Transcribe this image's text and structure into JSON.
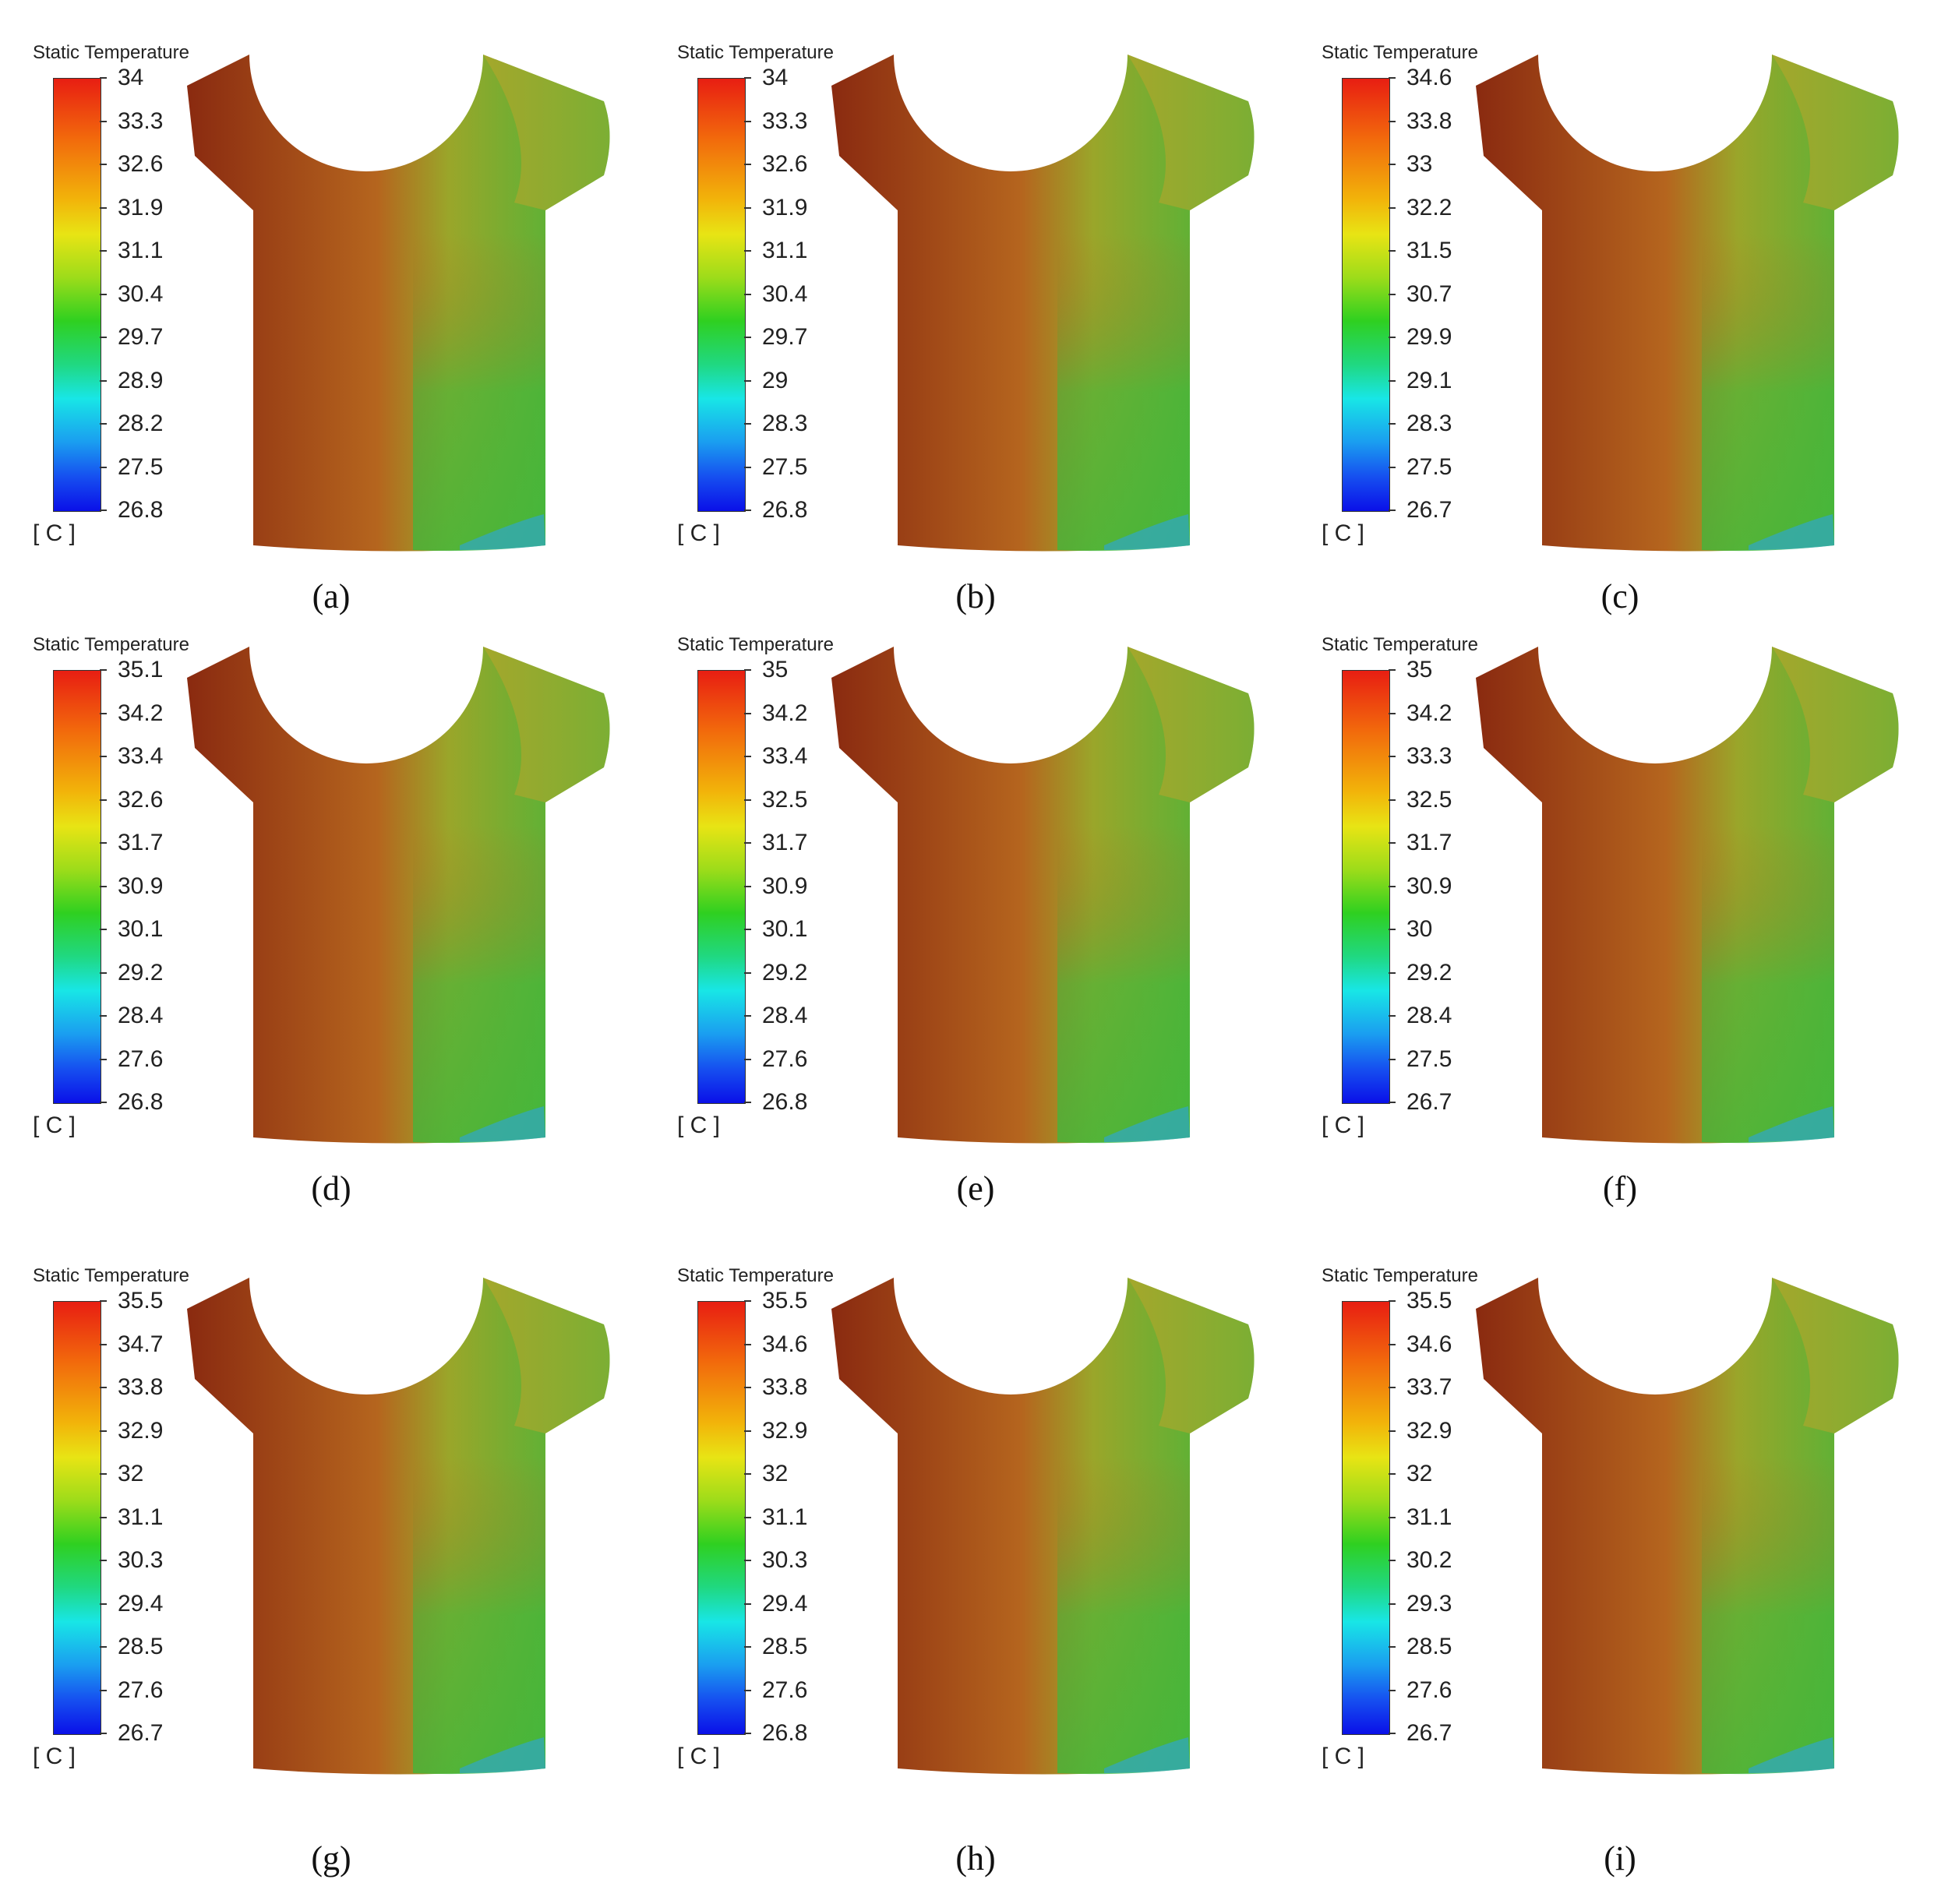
{
  "panels": [
    {
      "caption": "(a)",
      "legend_title": "Static Temperature",
      "units": "[ C ]",
      "ticks": [
        "34",
        "33.3",
        "32.6",
        "31.9",
        "31.1",
        "30.4",
        "29.7",
        "28.9",
        "28.2",
        "27.5",
        "26.8"
      ]
    },
    {
      "caption": "(b)",
      "legend_title": "Static Temperature",
      "units": "[ C ]",
      "ticks": [
        "34",
        "33.3",
        "32.6",
        "31.9",
        "31.1",
        "30.4",
        "29.7",
        "29",
        "28.3",
        "27.5",
        "26.8"
      ]
    },
    {
      "caption": "(c)",
      "legend_title": "Static Temperature",
      "units": "[ C ]",
      "ticks": [
        "34.6",
        "33.8",
        "33",
        "32.2",
        "31.5",
        "30.7",
        "29.9",
        "29.1",
        "28.3",
        "27.5",
        "26.7"
      ]
    },
    {
      "caption": "(d)",
      "legend_title": "Static Temperature",
      "units": "[ C ]",
      "ticks": [
        "35.1",
        "34.2",
        "33.4",
        "32.6",
        "31.7",
        "30.9",
        "30.1",
        "29.2",
        "28.4",
        "27.6",
        "26.8"
      ]
    },
    {
      "caption": "(e)",
      "legend_title": "Static Temperature",
      "units": "[ C ]",
      "ticks": [
        "35",
        "34.2",
        "33.4",
        "32.5",
        "31.7",
        "30.9",
        "30.1",
        "29.2",
        "28.4",
        "27.6",
        "26.8"
      ]
    },
    {
      "caption": "(f)",
      "legend_title": "Static Temperature",
      "units": "[ C ]",
      "ticks": [
        "35",
        "34.2",
        "33.3",
        "32.5",
        "31.7",
        "30.9",
        "30",
        "29.2",
        "28.4",
        "27.5",
        "26.7"
      ]
    },
    {
      "caption": "(g)",
      "legend_title": "Static Temperature",
      "units": "[ C ]",
      "ticks": [
        "35.5",
        "34.7",
        "33.8",
        "32.9",
        "32",
        "31.1",
        "30.3",
        "29.4",
        "28.5",
        "27.6",
        "26.7"
      ]
    },
    {
      "caption": "(h)",
      "legend_title": "Static Temperature",
      "units": "[ C ]",
      "ticks": [
        "35.5",
        "34.6",
        "33.8",
        "32.9",
        "32",
        "31.1",
        "30.3",
        "29.4",
        "28.5",
        "27.6",
        "26.8"
      ]
    },
    {
      "caption": "(i)",
      "legend_title": "Static Temperature",
      "units": "[ C ]",
      "ticks": [
        "35.5",
        "34.6",
        "33.7",
        "32.9",
        "32",
        "31.1",
        "30.2",
        "29.3",
        "28.5",
        "27.6",
        "26.7"
      ]
    }
  ],
  "colors": {
    "hot": "#8a2a10",
    "warm": "#b5651e",
    "mild": "#9aa62a",
    "cool": "#3cb83c",
    "cold": "#2fa6c8"
  }
}
